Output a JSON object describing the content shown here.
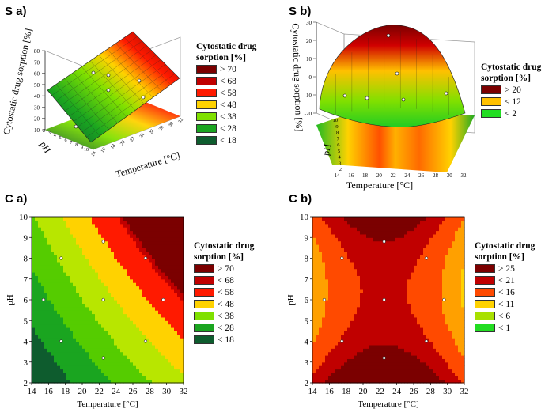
{
  "panels": {
    "sa": {
      "label": "S a)"
    },
    "sb": {
      "label": "S b)"
    },
    "ca": {
      "label": "C a)"
    },
    "cb": {
      "label": "C b)"
    }
  },
  "legend_sa": {
    "title": "Cytostatic drug sorption [%]",
    "items": [
      {
        "label": "> 70",
        "color": "#7b0000"
      },
      {
        "label": "< 68",
        "color": "#c00000"
      },
      {
        "label": "< 58",
        "color": "#ff1a00"
      },
      {
        "label": "< 48",
        "color": "#ffd200"
      },
      {
        "label": "< 38",
        "color": "#7fe000"
      },
      {
        "label": "< 28",
        "color": "#1aa520"
      },
      {
        "label": "< 18",
        "color": "#0e5c2e"
      }
    ]
  },
  "legend_sb": {
    "title": "Cytostatic drug sorption [%]",
    "items": [
      {
        "label": "> 20",
        "color": "#7b0000"
      },
      {
        "label": "< 12",
        "color": "#ffc000"
      },
      {
        "label": "< 2",
        "color": "#22dd22"
      }
    ]
  },
  "legend_ca": {
    "title": "Cytostatic drug sorption [%]",
    "items": [
      {
        "label": "> 70",
        "color": "#7b0000"
      },
      {
        "label": "< 68",
        "color": "#c00000"
      },
      {
        "label": "< 58",
        "color": "#ff1a00"
      },
      {
        "label": "< 48",
        "color": "#ffd200"
      },
      {
        "label": "< 38",
        "color": "#7fe000"
      },
      {
        "label": "< 28",
        "color": "#1aa520"
      },
      {
        "label": "< 18",
        "color": "#0e5c2e"
      }
    ]
  },
  "legend_cb": {
    "title": "Cytostatic drug sorption [%]",
    "items": [
      {
        "label": "> 25",
        "color": "#7b0000"
      },
      {
        "label": "< 21",
        "color": "#c00000"
      },
      {
        "label": "< 16",
        "color": "#ff4a00"
      },
      {
        "label": "< 11",
        "color": "#ffd200"
      },
      {
        "label": "< 6",
        "color": "#a8e000"
      },
      {
        "label": "< 1",
        "color": "#22dd22"
      }
    ]
  },
  "chart_data": [
    {
      "id": "S a)",
      "type": "surface3d",
      "xlabel": "Temperature [°C]",
      "ylabel": "pH",
      "zlabel": "Cytostatic drug sorption [%]",
      "xlim": [
        14,
        32
      ],
      "ylim": [
        2,
        10
      ],
      "zlim": [
        10,
        80
      ],
      "zticks": [
        "80",
        "70",
        "60",
        "50",
        "40",
        "30",
        "20",
        "10"
      ],
      "xticks": [
        "14",
        "16",
        "18",
        "20",
        "22",
        "24",
        "26",
        "28",
        "30",
        "32"
      ],
      "yticks": [
        "2",
        "3",
        "4",
        "5",
        "6",
        "7",
        "8",
        "9",
        "10"
      ]
    },
    {
      "id": "S b)",
      "type": "surface3d",
      "xlabel": "Temperature [°C]",
      "ylabel": "pH",
      "zlabel": "Cytostatic drug sorption [%]",
      "xlim": [
        14,
        32
      ],
      "ylim": [
        2,
        10
      ],
      "zlim": [
        -20,
        30
      ],
      "zticks": [
        "30",
        "20",
        "10",
        "0",
        "-10",
        "-20"
      ],
      "xticks": [
        "14",
        "16",
        "18",
        "20",
        "22",
        "24",
        "26",
        "28",
        "30",
        "32"
      ],
      "yticks": [
        "2",
        "3",
        "4",
        "5",
        "6",
        "7",
        "8",
        "9",
        "10"
      ]
    },
    {
      "id": "C a)",
      "type": "contour",
      "xlabel": "Temperature [°C]",
      "ylabel": "pH",
      "xlim": [
        14,
        32
      ],
      "ylim": [
        2,
        10
      ],
      "xticks": [
        "14",
        "16",
        "18",
        "20",
        "22",
        "24",
        "26",
        "28",
        "30",
        "32"
      ],
      "yticks": [
        "2",
        "3",
        "4",
        "5",
        "6",
        "7",
        "8",
        "9",
        "10"
      ],
      "levels": [
        18,
        28,
        38,
        48,
        58,
        68,
        70
      ],
      "design_points": [
        [
          15.4,
          6
        ],
        [
          17.5,
          8
        ],
        [
          17.5,
          4
        ],
        [
          22.5,
          8.8
        ],
        [
          22.5,
          6
        ],
        [
          22.5,
          3.2
        ],
        [
          27.5,
          8
        ],
        [
          27.5,
          4
        ],
        [
          29.6,
          6
        ]
      ]
    },
    {
      "id": "C b)",
      "type": "contour",
      "xlabel": "Temperature [°C]",
      "ylabel": "pH",
      "xlim": [
        14,
        32
      ],
      "ylim": [
        2,
        10
      ],
      "xticks": [
        "14",
        "16",
        "18",
        "20",
        "22",
        "24",
        "26",
        "28",
        "30",
        "32"
      ],
      "yticks": [
        "2",
        "3",
        "4",
        "5",
        "6",
        "7",
        "8",
        "9",
        "10"
      ],
      "levels": [
        1,
        6,
        11,
        16,
        21,
        25
      ],
      "design_points": [
        [
          15.4,
          6
        ],
        [
          17.5,
          8
        ],
        [
          17.5,
          4
        ],
        [
          22.5,
          8.8
        ],
        [
          22.5,
          6
        ],
        [
          22.5,
          3.2
        ],
        [
          27.5,
          8
        ],
        [
          27.5,
          4
        ],
        [
          29.6,
          6
        ]
      ]
    }
  ]
}
